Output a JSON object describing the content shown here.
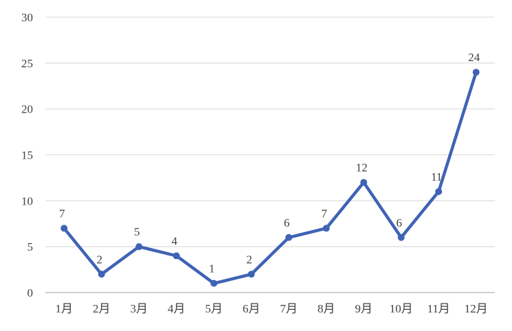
{
  "chart_data": {
    "type": "line",
    "title": "",
    "subtitle": "",
    "xlabel": "",
    "ylabel": "",
    "categories": [
      "1月",
      "2月",
      "3月",
      "4月",
      "5月",
      "6月",
      "7月",
      "8月",
      "9月",
      "10月",
      "11月",
      "12月"
    ],
    "series": [
      {
        "name": "monthly-values",
        "values": [
          7,
          2,
          5,
          4,
          1,
          2,
          6,
          7,
          12,
          6,
          11,
          24
        ]
      }
    ],
    "data_labels": [
      "7",
      "2",
      "5",
      "4",
      "1",
      "2",
      "6",
      "7",
      "12",
      "6",
      "11",
      "24"
    ],
    "ylim": [
      0,
      30
    ],
    "yticks": [
      0,
      5,
      10,
      15,
      20,
      25,
      30
    ],
    "grid": "horizontal",
    "legend": "none",
    "colors": {
      "line": "#3F63B5",
      "marker": "#3F63B5",
      "gridline": "#D9D9D9",
      "axis_baseline": "#BFBFBF",
      "label_text": "#3F3F3F",
      "background": "#FFFFFF"
    }
  }
}
